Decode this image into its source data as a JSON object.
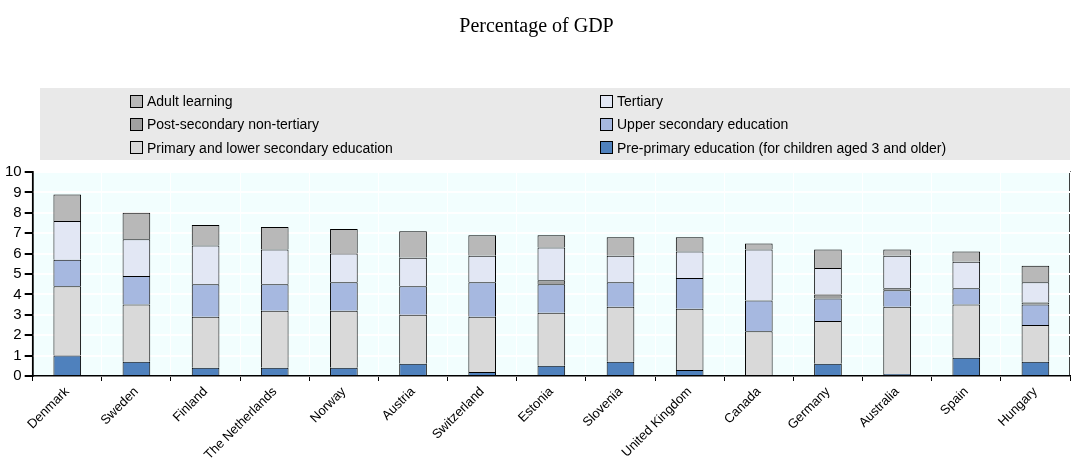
{
  "chart_data": {
    "type": "bar",
    "title": "Percentage of GDP",
    "stacked": true,
    "grid": true,
    "legend": "top",
    "categories": [
      "Denmark",
      "Sweden",
      "Finland",
      "The Netherlands",
      "Norway",
      "Austria",
      "Switzerland",
      "Estonia",
      "Slovenia",
      "United Kingdom",
      "Canada",
      "Germany",
      "Australia",
      "Spain",
      "Hungary"
    ],
    "ylim": [
      0,
      10
    ],
    "yticks": [
      0,
      1,
      2,
      3,
      4,
      5,
      6,
      7,
      8,
      9,
      10
    ],
    "series": [
      {
        "name": "Pre-primary education (for children aged 3 and older)",
        "color": "#4f81bd",
        "values": [
          1.0,
          0.7,
          0.4,
          0.4,
          0.4,
          0.6,
          0.2,
          0.5,
          0.7,
          0.3,
          0,
          0.6,
          0.1,
          0.9,
          0.7
        ]
      },
      {
        "name": "Primary and lower secondary education",
        "color": "#d9d9d9",
        "values": [
          3.4,
          2.8,
          2.5,
          2.8,
          2.8,
          2.4,
          2.7,
          2.6,
          2.7,
          3.0,
          2.2,
          2.1,
          3.3,
          2.6,
          1.8
        ]
      },
      {
        "name": "Upper secondary education",
        "color": "#a6b8e0",
        "values": [
          1.3,
          1.4,
          1.6,
          1.3,
          1.4,
          1.4,
          1.7,
          1.4,
          1.2,
          1.5,
          1.5,
          1.1,
          0.8,
          0.8,
          1.0
        ]
      },
      {
        "name": "Post-secondary non-tertiary",
        "color": "#a0a0a0",
        "values": [
          0,
          0,
          0,
          0,
          0,
          0,
          0,
          0.2,
          0,
          0,
          0,
          0.2,
          0.1,
          0,
          0.1
        ]
      },
      {
        "name": "Tertiary",
        "color": "#e2e7f4",
        "values": [
          1.9,
          1.8,
          1.9,
          1.7,
          1.4,
          1.4,
          1.3,
          1.6,
          1.3,
          1.3,
          2.5,
          1.3,
          1.6,
          1.3,
          1.0
        ]
      },
      {
        "name": "Adult learning",
        "color": "#b8b8b8",
        "values": [
          1.3,
          1.3,
          1.0,
          1.1,
          1.2,
          1.3,
          1.0,
          0.6,
          0.9,
          0.7,
          0.3,
          0.9,
          0.3,
          0.5,
          0.8
        ]
      }
    ]
  }
}
